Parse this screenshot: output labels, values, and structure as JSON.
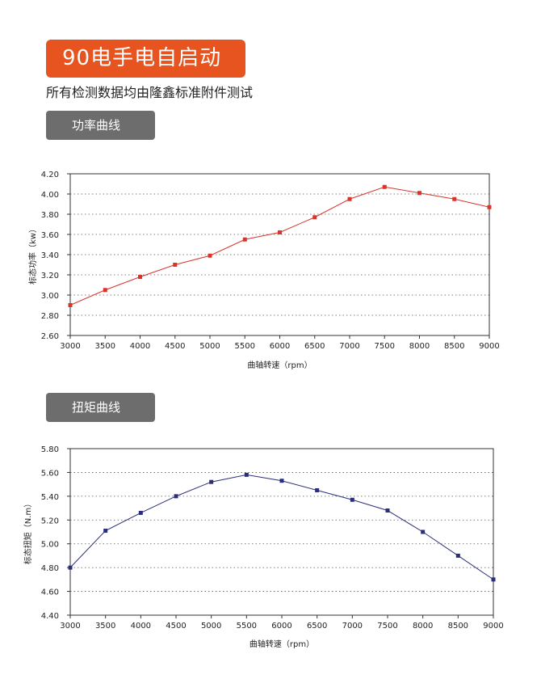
{
  "header": {
    "title": "90电手电自启动",
    "subtitle": "所有检测数据均由隆鑫标准附件测试"
  },
  "sections": [
    {
      "label": "功率曲线"
    },
    {
      "label": "扭矩曲线"
    }
  ],
  "colors": {
    "accent": "#e8541f",
    "tag": "#6d6d6d",
    "power_series": "#d9342b",
    "torque_series": "#2a2f7a"
  },
  "chart_data": [
    {
      "type": "line",
      "xlabel": "曲轴转速（rpm）",
      "ylabel": "标态功率（kw）",
      "x": [
        3000,
        3500,
        4000,
        4500,
        5000,
        5500,
        6000,
        6500,
        7000,
        7500,
        8000,
        8500,
        9000
      ],
      "values": [
        2.9,
        3.05,
        3.18,
        3.3,
        3.39,
        3.55,
        3.62,
        3.77,
        3.95,
        4.07,
        4.01,
        3.95,
        3.87
      ],
      "xlim": [
        3000,
        9000
      ],
      "ylim": [
        2.6,
        4.2
      ],
      "yticks": [
        "2.60",
        "2.80",
        "3.00",
        "3.20",
        "3.40",
        "3.60",
        "3.80",
        "4.00",
        "4.20"
      ],
      "xticks": [
        "3000",
        "3500",
        "4000",
        "4500",
        "5000",
        "5500",
        "6000",
        "6500",
        "7000",
        "7500",
        "8000",
        "8500",
        "9000"
      ],
      "grid": true
    },
    {
      "type": "line",
      "xlabel": "曲轴转速（rpm）",
      "ylabel": "标态扭矩（N.m）",
      "x": [
        3000,
        3500,
        4000,
        4500,
        5000,
        5500,
        6000,
        6500,
        7000,
        7500,
        8000,
        8500,
        9000
      ],
      "values": [
        4.8,
        5.11,
        5.26,
        5.4,
        5.52,
        5.58,
        5.53,
        5.45,
        5.37,
        5.28,
        5.1,
        4.9,
        4.7
      ],
      "xlim": [
        3000,
        9000
      ],
      "ylim": [
        4.4,
        5.8
      ],
      "yticks": [
        "4.40",
        "4.60",
        "4.80",
        "5.00",
        "5.20",
        "5.40",
        "5.60",
        "5.80"
      ],
      "xticks": [
        "3000",
        "3500",
        "4000",
        "4500",
        "5000",
        "5500",
        "6000",
        "6500",
        "7000",
        "7500",
        "8000",
        "8500",
        "9000"
      ],
      "grid": true
    }
  ]
}
